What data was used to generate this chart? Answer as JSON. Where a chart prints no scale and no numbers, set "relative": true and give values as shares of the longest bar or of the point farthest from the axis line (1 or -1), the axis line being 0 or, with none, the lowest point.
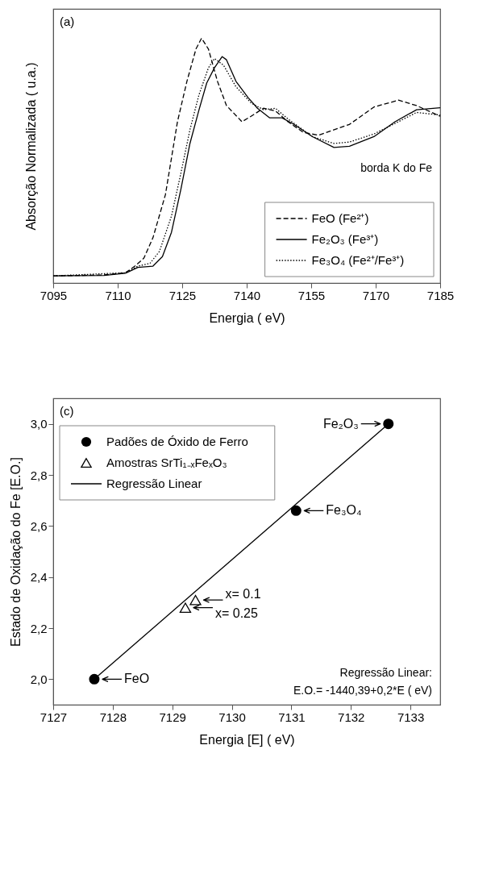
{
  "chart_data": [
    {
      "type": "line",
      "xlabel": "Energia  ( eV)",
      "ylabel": "Absorção Normalizada  ( u.a.)",
      "relative": true,
      "xlim": [
        7095,
        7185
      ],
      "xticks": [
        7095,
        7110,
        7125,
        7140,
        7155,
        7170,
        7185
      ],
      "tick_labels": "x",
      "legend": "bottom right",
      "annotations": [
        "(a)",
        "borda K do Fe"
      ],
      "series": [
        {
          "name": "FeO (Fe²⁺)",
          "color": "#000000",
          "line_style": "dashed",
          "x": [
            7095,
            7106.8,
            7111.8,
            7114.0,
            7116.1,
            7118.2,
            7121.1,
            7123.9,
            7126.1,
            7128.2,
            7129.5,
            7131.1,
            7133.2,
            7135.3,
            7138.9,
            7141.0,
            7143.9,
            7146.7,
            7149.6,
            7153.2,
            7156.7,
            7163.9,
            7169.6,
            7175.3,
            7179.5,
            7185
          ],
          "values": [
            0.029,
            0.033,
            0.042,
            0.069,
            0.102,
            0.185,
            0.361,
            0.659,
            0.824,
            0.956,
            1.0,
            0.956,
            0.824,
            0.725,
            0.659,
            0.681,
            0.714,
            0.703,
            0.659,
            0.615,
            0.604,
            0.648,
            0.719,
            0.747,
            0.725,
            0.681
          ]
        },
        {
          "name": "Fe₂O₃ (Fe³⁺)",
          "color": "#000000",
          "line_style": "solid",
          "x": [
            7095,
            7106.8,
            7111.8,
            7114.7,
            7118.2,
            7120.4,
            7122.5,
            7124.7,
            7126.8,
            7128.9,
            7130.7,
            7132.5,
            7134.3,
            7135.3,
            7137.5,
            7140.3,
            7142.5,
            7145.3,
            7148.2,
            7151.0,
            7155.3,
            7160.3,
            7163.9,
            7169.6,
            7174.5,
            7179.5,
            7185
          ],
          "values": [
            0.029,
            0.031,
            0.04,
            0.064,
            0.069,
            0.108,
            0.207,
            0.383,
            0.57,
            0.707,
            0.817,
            0.879,
            0.925,
            0.912,
            0.824,
            0.758,
            0.714,
            0.675,
            0.675,
            0.648,
            0.598,
            0.554,
            0.559,
            0.598,
            0.659,
            0.708,
            0.716
          ]
        },
        {
          "name": "Fe₃O₄ (Fe²⁺/Fe³⁺)",
          "color": "#000000",
          "line_style": "dotted",
          "x": [
            7095,
            7111.8,
            7114.7,
            7117.5,
            7119.7,
            7122.5,
            7124.7,
            7126.8,
            7128.9,
            7131.1,
            7132.5,
            7134.6,
            7137.5,
            7141.0,
            7143.9,
            7146.7,
            7149.6,
            7155.3,
            7160.3,
            7163.9,
            7169.6,
            7175.3,
            7179.5,
            7185
          ],
          "values": [
            0.029,
            0.042,
            0.069,
            0.08,
            0.129,
            0.273,
            0.449,
            0.626,
            0.769,
            0.879,
            0.917,
            0.89,
            0.802,
            0.736,
            0.708,
            0.714,
            0.67,
            0.598,
            0.57,
            0.576,
            0.609,
            0.659,
            0.697,
            0.686
          ]
        }
      ]
    },
    {
      "type": "scatter",
      "xlabel": "Energia [E]  ( eV)",
      "ylabel": "Estado de Oxidação do Fe [E.O.]",
      "xlim": [
        7127,
        7133.5
      ],
      "xticks": [
        7127,
        7128,
        7129,
        7130,
        7131,
        7132,
        7133
      ],
      "ylim": [
        1.9,
        3.1
      ],
      "yticks": [
        {
          "value": 2.0,
          "label": "2,0"
        },
        {
          "value": 2.2,
          "label": "2,2"
        },
        {
          "value": 2.4,
          "label": "2,4"
        },
        {
          "value": 2.6,
          "label": "2,6"
        },
        {
          "value": 2.8,
          "label": "2,8"
        },
        {
          "value": 3.0,
          "label": "3,0"
        }
      ],
      "legend": "top left",
      "annotations": [
        "(c)",
        "Regressão Linear:",
        "E.O.= -1440,39+0,2*E ( eV)",
        {
          "text": "Fe₂O₃",
          "x": 7132.63,
          "y": 3.0
        },
        {
          "text": "Fe₃O₄",
          "x": 7131.08,
          "y": 2.66
        },
        {
          "text": "x= 0.1",
          "x": 7129.39,
          "y": 2.31
        },
        {
          "text": "x= 0.25",
          "x": 7129.22,
          "y": 2.28
        },
        {
          "text": "FeO",
          "x": 7127.69,
          "y": 2.0
        }
      ],
      "series": [
        {
          "name": "Padões de Óxido de Ferro",
          "color": "#000000",
          "marker": "circle",
          "x": [
            7127.69,
            7131.08,
            7132.63
          ],
          "values": [
            2.0,
            2.66,
            3.0
          ]
        },
        {
          "name": "Amostras SrTi₁₋ₓFeₓO₃",
          "color": "#000000",
          "marker": "triangle",
          "x": [
            7129.22,
            7129.39
          ],
          "values": [
            2.28,
            2.31
          ]
        },
        {
          "name": "Regressão Linear",
          "color": "#000000",
          "type": "line",
          "line_style": "solid",
          "x": [
            7127.69,
            7132.63
          ],
          "values": [
            2.0,
            3.0
          ]
        }
      ]
    }
  ]
}
